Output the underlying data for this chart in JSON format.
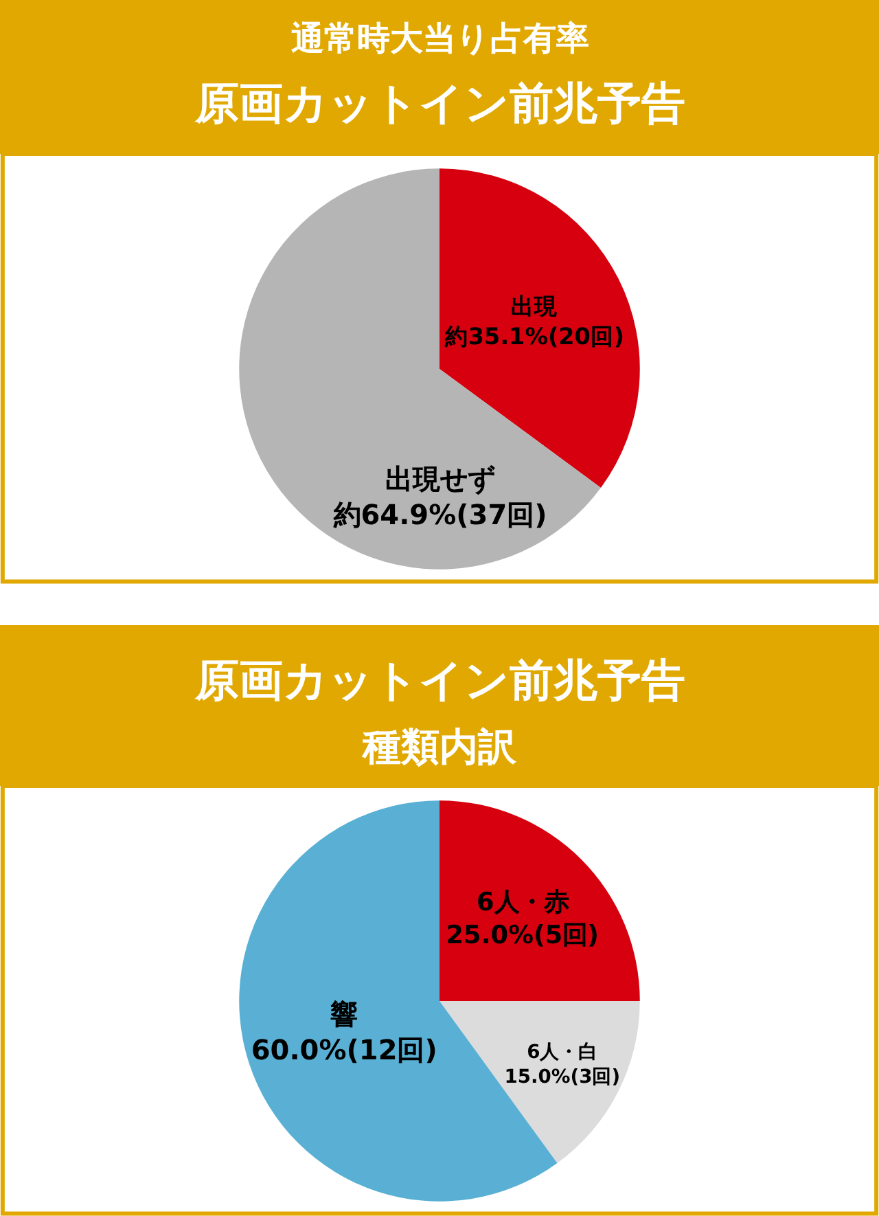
{
  "chart_data": [
    {
      "type": "pie",
      "title": "原画カットイン前兆予告",
      "subtitle": "通常時大当り占有率",
      "categories": [
        "出現",
        "出現せず"
      ],
      "values": [
        35.1,
        64.9
      ],
      "colors": [
        "#d7000f",
        "#b5b5b6"
      ],
      "value_labels": [
        "約35.1%(20回)",
        "約64.9%(37回)"
      ]
    },
    {
      "type": "pie",
      "title": "原画カットイン前兆予告",
      "subtitle": "種類内訳",
      "categories": [
        "6人・赤",
        "6人・白",
        "響"
      ],
      "values": [
        25.0,
        15.0,
        60.0
      ],
      "colors": [
        "#d7000f",
        "#dcdcdc",
        "#5ab0d4"
      ],
      "value_labels": [
        "25.0%(5回)",
        "15.0%(3回)",
        "60.0%(12回)"
      ]
    }
  ]
}
